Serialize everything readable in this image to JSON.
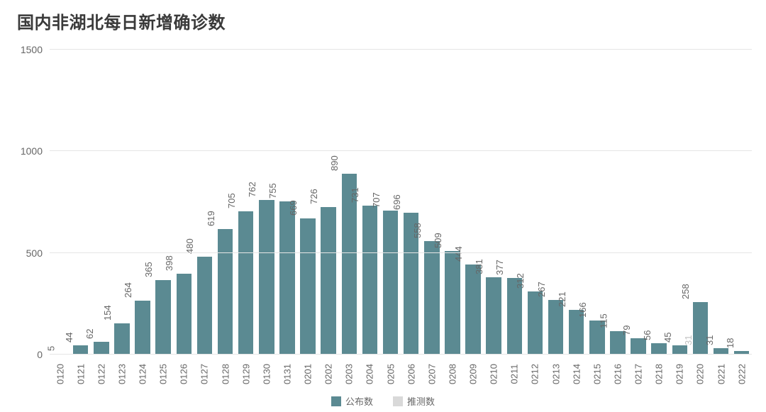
{
  "chart": {
    "type": "bar",
    "title": "国内非湖北每日新增确诊数",
    "title_fontsize": 24,
    "title_color": "#3a3a3a",
    "background_color": "#ffffff",
    "grid_color": "#e5e5e5",
    "axis_label_color": "#666666",
    "axis_label_fontsize": 14,
    "bar_label_fontsize": 13,
    "bar_width_ratio": 0.74,
    "ylim": [
      0,
      1500
    ],
    "yticks": [
      0,
      500,
      1000,
      1500
    ],
    "categories": [
      "0120",
      "0121",
      "0122",
      "0123",
      "0124",
      "0125",
      "0126",
      "0127",
      "0128",
      "0129",
      "0130",
      "0131",
      "0201",
      "0202",
      "0203",
      "0204",
      "0205",
      "0206",
      "0207",
      "0208",
      "0209",
      "0210",
      "0211",
      "0212",
      "0213",
      "0214",
      "0215",
      "0216",
      "0217",
      "0218",
      "0219",
      "0220",
      "0221",
      "0222"
    ],
    "series": [
      {
        "name": "公布数",
        "color": "#5b8a92",
        "values": [
          5,
          44,
          62,
          154,
          264,
          365,
          398,
          480,
          619,
          705,
          762,
          755,
          669,
          726,
          890,
          731,
          707,
          696,
          558,
          509,
          444,
          381,
          377,
          312,
          267,
          221,
          166,
          115,
          79,
          56,
          45,
          258,
          31,
          18
        ]
      },
      {
        "name": "推测数",
        "color": "#d9d9d9",
        "values": [
          null,
          null,
          null,
          null,
          null,
          null,
          null,
          null,
          null,
          null,
          null,
          null,
          null,
          null,
          null,
          null,
          null,
          null,
          null,
          null,
          null,
          null,
          null,
          null,
          null,
          null,
          null,
          null,
          null,
          null,
          null,
          31,
          null,
          null
        ]
      }
    ],
    "legend": {
      "items": [
        {
          "label": "公布数",
          "color": "#5b8a92"
        },
        {
          "label": "推测数",
          "color": "#d9d9d9"
        }
      ]
    }
  }
}
